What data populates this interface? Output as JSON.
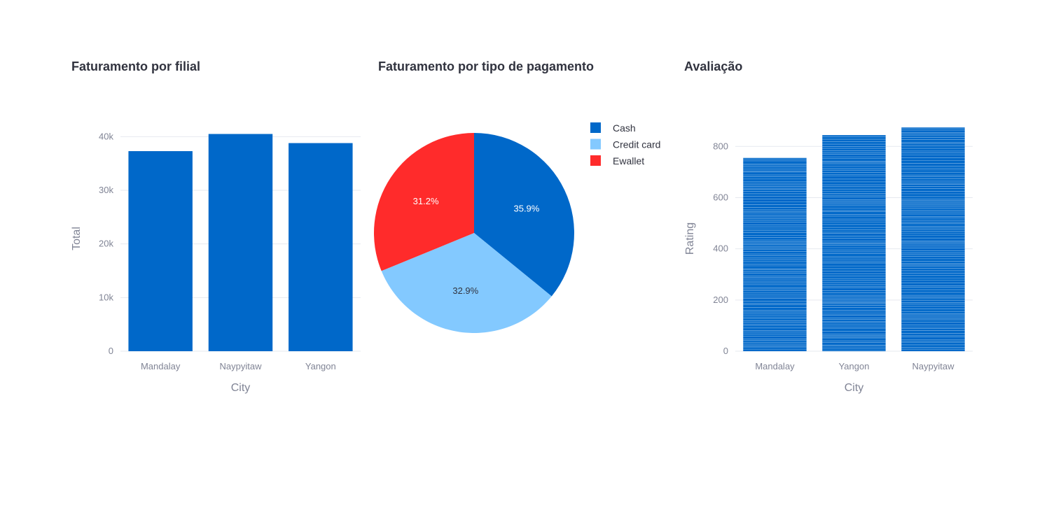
{
  "chart_data": [
    {
      "type": "bar",
      "title": "Faturamento por filial",
      "xlabel": "City",
      "ylabel": "Total",
      "categories": [
        "Mandalay",
        "Naypyitaw",
        "Yangon"
      ],
      "values": [
        37300,
        40500,
        38800
      ],
      "ylim": [
        0,
        42000
      ],
      "yticks": [
        0,
        10000,
        20000,
        30000,
        40000
      ],
      "ytick_labels": [
        "0",
        "10k",
        "20k",
        "30k",
        "40k"
      ],
      "grid": true,
      "color": "#0068c9"
    },
    {
      "type": "pie",
      "title": "Faturamento por tipo de pagamento",
      "labels": [
        "Cash",
        "Credit card",
        "Ewallet"
      ],
      "values": [
        35.9,
        32.9,
        31.2
      ],
      "value_labels": [
        "35.9%",
        "32.9%",
        "31.2%"
      ],
      "colors": [
        "#0068c9",
        "#83c9ff",
        "#ff2b2b"
      ],
      "label_colors": [
        "#ffffff",
        "#31333f",
        "#ffffff"
      ],
      "legend": "top-right"
    },
    {
      "type": "bar",
      "title": "Avaliação",
      "xlabel": "City",
      "ylabel": "Rating",
      "categories": [
        "Mandalay",
        "Yangon",
        "Naypyitaw"
      ],
      "values": [
        755,
        844,
        874
      ],
      "ylim": [
        0,
        880
      ],
      "yticks": [
        0,
        200,
        400,
        600,
        800
      ],
      "ytick_labels": [
        "0",
        "200",
        "400",
        "600",
        "800"
      ],
      "grid": true,
      "color": "#0068c9",
      "stacked_segments": true
    }
  ]
}
